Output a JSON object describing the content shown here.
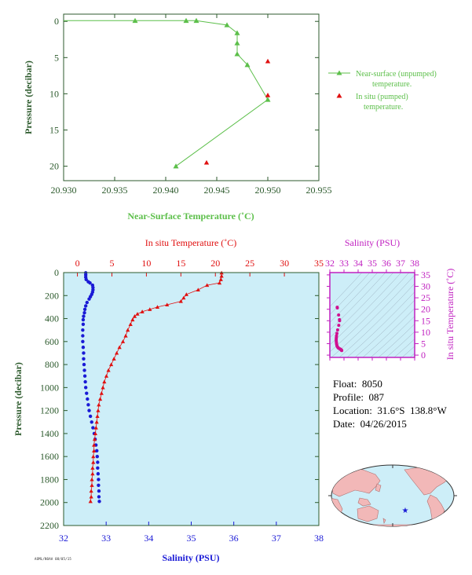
{
  "colors": {
    "near_surface": "#5cbf4a",
    "in_situ_temp": "#e01010",
    "salinity": "#1a1ad6",
    "ts_salinity": "#d01090",
    "ts_frame": "#c020c0",
    "axis_green": "#2c5a2c",
    "panel_bg": "#cdeef8",
    "land": "#f2b8b8",
    "ocean": "#cdeef8"
  },
  "info": {
    "float": "Float:  8050",
    "profile": "Profile:  087",
    "location": "Location:  31.6°S  138.8°W",
    "date": "Date:  04/26/2015"
  },
  "stamp": "AOML/NOAA 08/05/15",
  "chart_data": [
    {
      "type": "line",
      "id": "near-surface",
      "xlabel": "Near-Surface Temperature (˚C)",
      "ylabel": "Pressure (decibar)",
      "xlim": [
        20.93,
        20.955
      ],
      "ylim": [
        22,
        -1
      ],
      "xticks": [
        "20.930",
        "20.935",
        "20.940",
        "20.945",
        "20.950",
        "20.955"
      ],
      "yticks": [
        "0",
        "5",
        "10",
        "15",
        "20"
      ],
      "legend": {
        "placement": "right",
        "entries": [
          {
            "line1": "Near-surface (unpumped)",
            "line2": "temperature."
          },
          {
            "line1": "In situ (pumped)",
            "line2": "temperature."
          }
        ]
      },
      "series": [
        {
          "name": "Near-surface (unpumped) temperature.",
          "points": [
            [
              20.93,
              -0.1
            ],
            [
              20.937,
              -0.1
            ],
            [
              20.942,
              -0.1
            ],
            [
              20.943,
              -0.1
            ],
            [
              20.946,
              0.5
            ],
            [
              20.947,
              1.6
            ],
            [
              20.947,
              3.0
            ],
            [
              20.947,
              4.5
            ],
            [
              20.948,
              6.0
            ],
            [
              20.95,
              10.8
            ],
            [
              20.941,
              20.0
            ]
          ]
        },
        {
          "name": "In situ (pumped) temperature.",
          "points": [
            [
              20.95,
              5.5
            ],
            [
              20.95,
              10.2
            ],
            [
              20.944,
              19.5
            ]
          ]
        }
      ]
    },
    {
      "type": "scatter",
      "id": "profile",
      "ylabel": "Pressure (decibar)",
      "x_top_label": "In situ Temperature (˚C)",
      "x_bottom_label": "Salinity (PSU)",
      "temp_lim": [
        -2,
        35
      ],
      "sal_lim": [
        32,
        38
      ],
      "ylim": [
        2200,
        0
      ],
      "temp_ticks": [
        "0",
        "5",
        "10",
        "15",
        "20",
        "25",
        "30",
        "35"
      ],
      "sal_ticks": [
        "32",
        "33",
        "34",
        "35",
        "36",
        "37",
        "38"
      ],
      "yticks": [
        "0",
        "200",
        "400",
        "600",
        "800",
        "1000",
        "1200",
        "1400",
        "1600",
        "1800",
        "2000",
        "2200"
      ],
      "temperature": [
        [
          20.9,
          2
        ],
        [
          20.9,
          30
        ],
        [
          20.8,
          60
        ],
        [
          20.6,
          90
        ],
        [
          18.8,
          110
        ],
        [
          17.5,
          150
        ],
        [
          15.8,
          190
        ],
        [
          15.4,
          220
        ],
        [
          15.0,
          250
        ],
        [
          13.0,
          280
        ],
        [
          11.6,
          300
        ],
        [
          10.5,
          320
        ],
        [
          9.4,
          340
        ],
        [
          8.7,
          360
        ],
        [
          8.3,
          380
        ],
        [
          8.0,
          410
        ],
        [
          7.7,
          450
        ],
        [
          7.3,
          500
        ],
        [
          7.0,
          550
        ],
        [
          6.6,
          600
        ],
        [
          6.1,
          650
        ],
        [
          5.7,
          700
        ],
        [
          5.3,
          750
        ],
        [
          4.9,
          800
        ],
        [
          4.5,
          850
        ],
        [
          4.2,
          900
        ],
        [
          3.9,
          950
        ],
        [
          3.7,
          1000
        ],
        [
          3.5,
          1050
        ],
        [
          3.3,
          1100
        ],
        [
          3.1,
          1150
        ],
        [
          3.0,
          1200
        ],
        [
          2.9,
          1250
        ],
        [
          2.8,
          1300
        ],
        [
          2.7,
          1350
        ],
        [
          2.6,
          1400
        ],
        [
          2.5,
          1450
        ],
        [
          2.4,
          1500
        ],
        [
          2.4,
          1550
        ],
        [
          2.3,
          1600
        ],
        [
          2.3,
          1650
        ],
        [
          2.2,
          1700
        ],
        [
          2.2,
          1750
        ],
        [
          2.1,
          1800
        ],
        [
          2.1,
          1850
        ],
        [
          2.0,
          1900
        ],
        [
          2.0,
          1950
        ],
        [
          1.9,
          1990
        ]
      ],
      "salinity": [
        [
          32.52,
          2
        ],
        [
          32.52,
          20
        ],
        [
          32.52,
          40
        ],
        [
          32.53,
          60
        ],
        [
          32.58,
          80
        ],
        [
          32.62,
          90
        ],
        [
          32.68,
          110
        ],
        [
          32.69,
          130
        ],
        [
          32.69,
          150
        ],
        [
          32.68,
          170
        ],
        [
          32.66,
          190
        ],
        [
          32.63,
          210
        ],
        [
          32.6,
          230
        ],
        [
          32.55,
          260
        ],
        [
          32.52,
          290
        ],
        [
          32.5,
          320
        ],
        [
          32.49,
          350
        ],
        [
          32.47,
          380
        ],
        [
          32.46,
          410
        ],
        [
          32.46,
          450
        ],
        [
          32.45,
          500
        ],
        [
          32.45,
          550
        ],
        [
          32.45,
          600
        ],
        [
          32.46,
          650
        ],
        [
          32.47,
          700
        ],
        [
          32.47,
          750
        ],
        [
          32.48,
          800
        ],
        [
          32.49,
          850
        ],
        [
          32.5,
          900
        ],
        [
          32.51,
          950
        ],
        [
          32.52,
          1000
        ],
        [
          32.54,
          1050
        ],
        [
          32.56,
          1100
        ],
        [
          32.58,
          1150
        ],
        [
          32.6,
          1200
        ],
        [
          32.63,
          1250
        ],
        [
          32.66,
          1300
        ],
        [
          32.69,
          1350
        ],
        [
          32.72,
          1400
        ],
        [
          32.74,
          1450
        ],
        [
          32.76,
          1500
        ],
        [
          32.78,
          1550
        ],
        [
          32.79,
          1600
        ],
        [
          32.8,
          1650
        ],
        [
          32.8,
          1700
        ],
        [
          32.81,
          1750
        ],
        [
          32.82,
          1800
        ],
        [
          32.82,
          1850
        ],
        [
          32.83,
          1900
        ],
        [
          32.83,
          1950
        ],
        [
          32.84,
          1990
        ]
      ]
    },
    {
      "type": "scatter",
      "id": "ts-diagram",
      "xlabel": "Salinity (PSU)",
      "ylabel": "In situ Temperature (˚C)",
      "xlim": [
        32,
        38
      ],
      "ylim": [
        -1,
        36
      ],
      "xticks": [
        "32",
        "33",
        "34",
        "35",
        "36",
        "37",
        "38"
      ],
      "yticks": [
        "0",
        "5",
        "10",
        "15",
        "20",
        "25",
        "30",
        "35"
      ],
      "points": [
        [
          32.52,
          20.9
        ],
        [
          32.53,
          20.6
        ],
        [
          32.62,
          17.5
        ],
        [
          32.68,
          15.5
        ],
        [
          32.69,
          15.0
        ],
        [
          32.63,
          13.0
        ],
        [
          32.55,
          11.0
        ],
        [
          32.5,
          9.5
        ],
        [
          32.47,
          8.4
        ],
        [
          32.46,
          7.7
        ],
        [
          32.45,
          7.0
        ],
        [
          32.45,
          6.3
        ],
        [
          32.46,
          5.7
        ],
        [
          32.47,
          5.2
        ],
        [
          32.48,
          4.7
        ],
        [
          32.5,
          4.2
        ],
        [
          32.52,
          3.8
        ],
        [
          32.56,
          3.4
        ],
        [
          32.6,
          3.1
        ],
        [
          32.66,
          2.9
        ],
        [
          32.72,
          2.7
        ],
        [
          32.76,
          2.5
        ],
        [
          32.79,
          2.4
        ],
        [
          32.8,
          2.3
        ],
        [
          32.82,
          2.2
        ],
        [
          32.83,
          2.1
        ],
        [
          32.84,
          2.0
        ]
      ]
    }
  ],
  "map": {
    "marker_lat": -31.6,
    "marker_lon": -138.8,
    "marker_icon": "star-icon"
  }
}
